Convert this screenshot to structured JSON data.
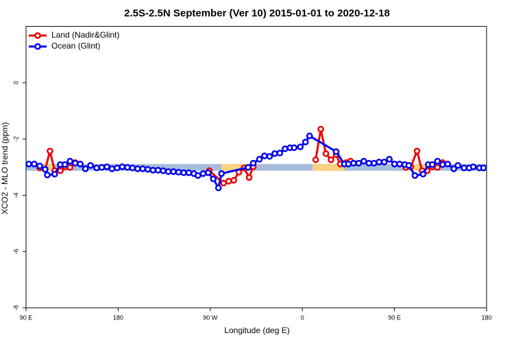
{
  "chart_data": {
    "type": "line",
    "title": "2.5S-2.5N September (Ver 10)   2015-01-01 to 2020-12-18",
    "x_label": "Longitude (deg E)",
    "y_label": "XCO2 - MLO trend (ppm)",
    "xlim": [
      90,
      540
    ],
    "ylim": [
      -8,
      2
    ],
    "xticks": [
      {
        "value": 90,
        "label": "90 E"
      },
      180,
      {
        "value": 270,
        "label": "90 W"
      },
      {
        "value": 360,
        "label": "0"
      },
      {
        "value": 450,
        "label": "90 E"
      },
      {
        "value": 540,
        "label": "180"
      }
    ],
    "yticks": [
      0,
      -2,
      -4,
      -6,
      -8
    ],
    "legend": "top-left",
    "band": {
      "ylim": [
        -3.13,
        -2.89
      ],
      "segments": [
        {
          "x": [
            90,
            540
          ],
          "color": "#a7bcdc"
        },
        {
          "x": [
            108,
            118
          ],
          "color": "#ffd27f"
        },
        {
          "x": [
            281,
            307
          ],
          "color": "#ffd27f"
        },
        {
          "x": [
            370,
            401
          ],
          "color": "#ffd27f"
        },
        {
          "x": [
            466,
            480
          ],
          "color": "#ffd27f"
        }
      ]
    },
    "series": [
      {
        "name": "Land (Nadir&Glint)",
        "color": "#ee0000",
        "x": [
          103.4,
          108.7,
          113.4,
          118,
          123.5,
          128,
          133,
          138,
          200,
          269,
          283,
          288,
          293,
          298,
          303,
          308,
          312,
          340,
          373,
          378,
          383,
          388,
          393,
          397,
          403,
          407,
          430,
          461,
          466,
          472,
          477,
          482,
          487,
          492,
          497
        ],
        "values": [
          -3.03,
          -3.08,
          -2.43,
          -3.13,
          -3.13,
          -2.99,
          -3.01,
          -2.84,
          null,
          -3.13,
          -3.57,
          -3.5,
          -3.47,
          -3.18,
          -3.03,
          -3.37,
          -2.99,
          null,
          -2.74,
          -1.65,
          -2.52,
          -2.74,
          -2.55,
          -2.89,
          -2.84,
          -2.79,
          null,
          -3.01,
          -2.99,
          -2.43,
          -3.13,
          -3.13,
          -2.99,
          -3.01,
          -2.84
        ]
      },
      {
        "name": "Ocean (Glint)",
        "color": "#0000ee",
        "x": [
          92.7,
          98,
          103.4,
          108.7,
          110.8,
          118,
          123.5,
          128,
          133,
          138,
          143,
          148,
          153,
          159,
          164,
          169,
          174,
          179,
          184,
          189,
          194,
          199,
          204,
          209,
          214,
          219,
          224,
          229,
          234,
          239,
          244,
          249,
          254,
          258,
          263,
          268,
          273,
          278,
          281,
          307,
          312,
          318,
          323,
          328,
          333,
          338,
          343,
          348,
          352,
          358,
          363,
          367,
          393,
          401,
          405,
          410,
          415,
          420,
          425,
          430,
          435,
          440,
          445,
          450,
          455,
          460,
          464,
          470,
          478,
          483,
          487,
          492,
          497,
          502,
          508,
          512,
          518,
          523,
          527,
          533,
          537
        ],
        "values": [
          -2.89,
          -2.89,
          -2.96,
          -3.08,
          -3.28,
          -3.25,
          -2.91,
          -2.91,
          -2.79,
          -2.86,
          -2.89,
          -3.06,
          -2.94,
          -3.03,
          -3.01,
          -2.99,
          -3.06,
          -3.03,
          -2.99,
          -3.01,
          -3.03,
          -3.06,
          -3.06,
          -3.08,
          -3.11,
          -3.11,
          -3.13,
          -3.16,
          -3.16,
          -3.18,
          -3.2,
          -3.2,
          -3.23,
          -3.3,
          -3.23,
          -3.2,
          -3.42,
          -3.74,
          -3.23,
          -3.01,
          -2.86,
          -2.72,
          -2.6,
          -2.62,
          -2.52,
          -2.5,
          -2.35,
          -2.31,
          -2.31,
          -2.28,
          -2.11,
          -1.89,
          -2.45,
          -2.89,
          -2.89,
          -2.86,
          -2.86,
          -2.79,
          -2.86,
          -2.86,
          -2.82,
          -2.82,
          -2.72,
          -2.89,
          -2.89,
          -2.91,
          -2.94,
          -3.3,
          -3.25,
          -2.91,
          -2.91,
          -2.79,
          -2.91,
          -2.89,
          -3.06,
          -2.94,
          -3.03,
          -3.03,
          -2.99,
          -3.03,
          -3.03
        ]
      }
    ]
  }
}
